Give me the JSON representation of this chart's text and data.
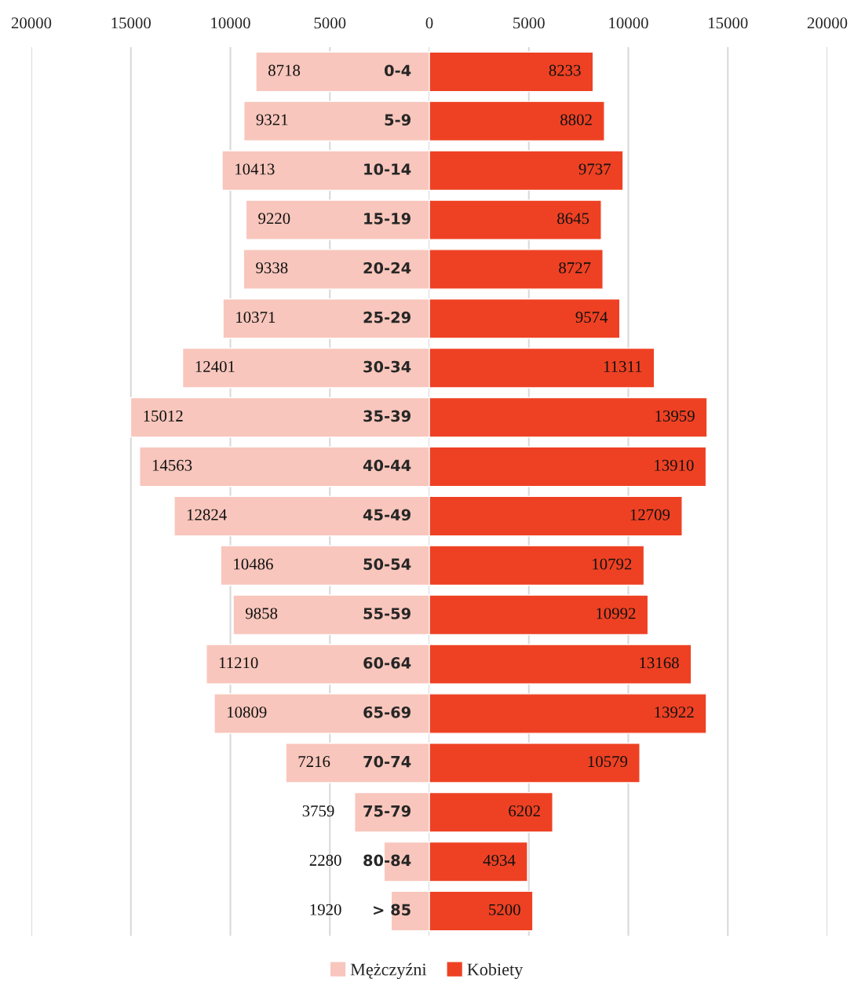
{
  "chart_data": [
    {
      "type": "bar",
      "orientation": "horizontal",
      "categories": [
        "0-4",
        "5-9",
        "10-14",
        "15-19",
        "20-24",
        "25-29",
        "30-34",
        "35-39",
        "40-44",
        "45-49",
        "50-54",
        "55-59",
        "60-64",
        "65-69",
        "70-74",
        "75-79",
        "80-84",
        "> 85"
      ],
      "series": [
        {
          "name": "Mężczyźni",
          "color": "#f8c6bc",
          "values": [
            8718,
            9321,
            10413,
            9220,
            9338,
            10371,
            12401,
            15012,
            14563,
            12824,
            10486,
            9858,
            11210,
            10809,
            7216,
            3759,
            2280,
            1920
          ]
        }
      ],
      "data_labels": true,
      "xlim": [
        20000,
        0
      ],
      "xticks": [
        20000,
        15000,
        10000,
        5000,
        0
      ],
      "grid": "x",
      "legend": "bottom"
    },
    {
      "type": "bar",
      "orientation": "horizontal",
      "categories": [
        null,
        null,
        null,
        null,
        null,
        null,
        null,
        null,
        null,
        null,
        null,
        null,
        null,
        null,
        null,
        null,
        null,
        null
      ],
      "series": [
        {
          "name": "Kobiety",
          "color": "#ee4123",
          "values": [
            8233,
            8802,
            9737,
            8645,
            8727,
            9574,
            11311,
            13959,
            13910,
            12709,
            10792,
            10992,
            13168,
            13922,
            10579,
            6202,
            4934,
            5200
          ]
        }
      ],
      "data_labels": true,
      "xlim": [
        0,
        20000
      ],
      "xticks": [
        5000,
        10000,
        15000,
        20000
      ],
      "grid": "x",
      "legend": "bottom"
    }
  ]
}
